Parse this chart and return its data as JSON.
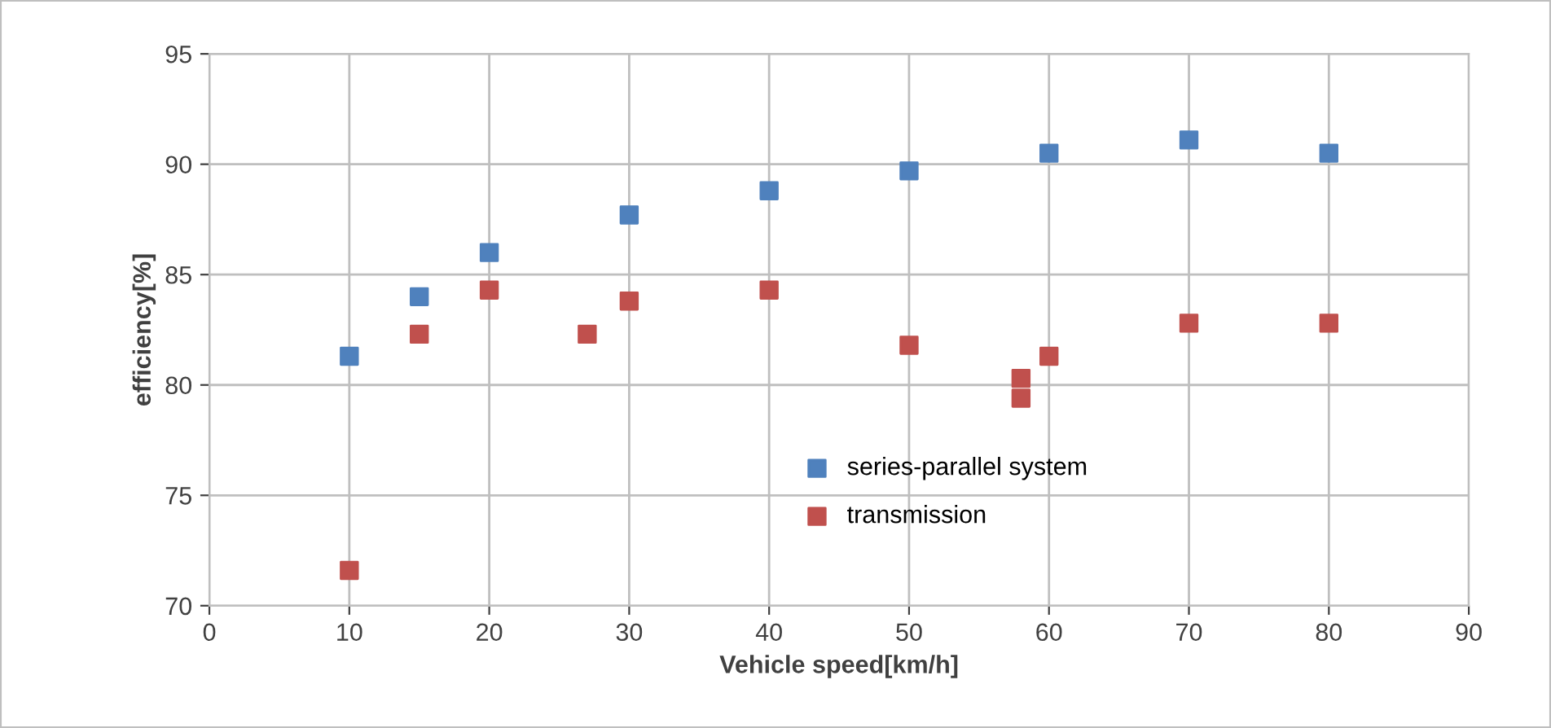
{
  "chart_data": {
    "type": "scatter",
    "xlabel": "Vehicle speed[km/h]",
    "ylabel": "efficiency[%]",
    "xlim": [
      0,
      90
    ],
    "xticks": [
      0,
      10,
      20,
      30,
      40,
      50,
      60,
      70,
      80,
      90
    ],
    "ylim": [
      70,
      95
    ],
    "yticks": [
      70,
      75,
      80,
      85,
      90,
      95
    ],
    "grid": true,
    "legend": "bottom",
    "marker": "square",
    "series": [
      {
        "name": "series-parallel system",
        "color": "#4f81bd",
        "x": [
          10,
          15,
          20,
          30,
          40,
          50,
          60,
          70,
          80
        ],
        "values": [
          81.3,
          84.0,
          86.0,
          87.7,
          88.8,
          89.7,
          90.5,
          91.1,
          90.5
        ]
      },
      {
        "name": "transmission",
        "color": "#c0504d",
        "x": [
          10,
          15,
          20,
          27,
          30,
          40,
          50,
          58,
          58,
          60,
          70,
          80
        ],
        "values": [
          71.6,
          82.3,
          84.3,
          82.3,
          83.8,
          84.3,
          81.8,
          80.3,
          79.4,
          81.3,
          82.8,
          82.8
        ]
      }
    ]
  }
}
